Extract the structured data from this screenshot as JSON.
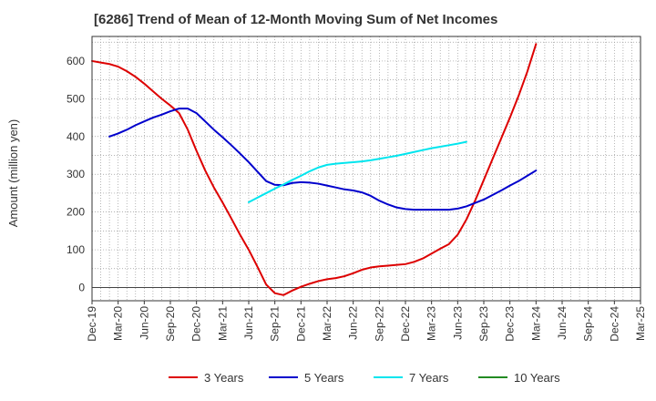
{
  "chart_data": {
    "type": "line",
    "title": "[6286]  Trend of Mean of 12-Month Moving Sum of Net Incomes",
    "ylabel": "Amount (million yen)",
    "xlabel": "",
    "x_tick_labels": [
      "Dec-19",
      "Mar-20",
      "Jun-20",
      "Sep-20",
      "Dec-20",
      "Mar-21",
      "Jun-21",
      "Sep-21",
      "Dec-21",
      "Mar-22",
      "Jun-22",
      "Sep-22",
      "Dec-22",
      "Mar-23",
      "Jun-23",
      "Sep-23",
      "Dec-23",
      "Mar-24",
      "Jun-24",
      "Sep-24",
      "Dec-24",
      "Mar-25"
    ],
    "y_ticks": [
      0,
      100,
      200,
      300,
      400,
      500,
      600
    ],
    "ylim": [
      -35,
      665
    ],
    "grid": true,
    "legend_position": "bottom",
    "series": [
      {
        "name": "3 Years",
        "color": "#dd0000",
        "points": [
          [
            0,
            600
          ],
          [
            1,
            596
          ],
          [
            2,
            592
          ],
          [
            3,
            585
          ],
          [
            4,
            573
          ],
          [
            5,
            558
          ],
          [
            6,
            540
          ],
          [
            7,
            520
          ],
          [
            8,
            500
          ],
          [
            9,
            482
          ],
          [
            10,
            462
          ],
          [
            11,
            418
          ],
          [
            12,
            362
          ],
          [
            13,
            310
          ],
          [
            14,
            265
          ],
          [
            15,
            225
          ],
          [
            16,
            183
          ],
          [
            17,
            140
          ],
          [
            18,
            100
          ],
          [
            19,
            55
          ],
          [
            20,
            8
          ],
          [
            21,
            -15
          ],
          [
            22,
            -20
          ],
          [
            23,
            -8
          ],
          [
            24,
            2
          ],
          [
            25,
            10
          ],
          [
            26,
            17
          ],
          [
            27,
            22
          ],
          [
            28,
            25
          ],
          [
            29,
            30
          ],
          [
            30,
            38
          ],
          [
            31,
            47
          ],
          [
            32,
            53
          ],
          [
            33,
            56
          ],
          [
            34,
            58
          ],
          [
            35,
            60
          ],
          [
            36,
            62
          ],
          [
            37,
            68
          ],
          [
            38,
            77
          ],
          [
            39,
            90
          ],
          [
            40,
            103
          ],
          [
            41,
            115
          ],
          [
            42,
            140
          ],
          [
            43,
            180
          ],
          [
            44,
            230
          ],
          [
            45,
            285
          ],
          [
            46,
            340
          ],
          [
            47,
            395
          ],
          [
            48,
            450
          ],
          [
            49,
            508
          ],
          [
            50,
            572
          ],
          [
            51,
            645
          ]
        ]
      },
      {
        "name": "5 Years",
        "color": "#0000cc",
        "points": [
          [
            2,
            400
          ],
          [
            3,
            408
          ],
          [
            4,
            418
          ],
          [
            5,
            430
          ],
          [
            6,
            440
          ],
          [
            7,
            450
          ],
          [
            8,
            458
          ],
          [
            9,
            467
          ],
          [
            10,
            474
          ],
          [
            11,
            474
          ],
          [
            12,
            462
          ],
          [
            13,
            440
          ],
          [
            14,
            418
          ],
          [
            15,
            398
          ],
          [
            16,
            377
          ],
          [
            17,
            355
          ],
          [
            18,
            332
          ],
          [
            19,
            307
          ],
          [
            20,
            282
          ],
          [
            21,
            272
          ],
          [
            22,
            271
          ],
          [
            23,
            277
          ],
          [
            24,
            279
          ],
          [
            25,
            278
          ],
          [
            26,
            275
          ],
          [
            27,
            270
          ],
          [
            28,
            265
          ],
          [
            29,
            260
          ],
          [
            30,
            257
          ],
          [
            31,
            252
          ],
          [
            32,
            243
          ],
          [
            33,
            230
          ],
          [
            34,
            220
          ],
          [
            35,
            212
          ],
          [
            36,
            208
          ],
          [
            37,
            206
          ],
          [
            38,
            206
          ],
          [
            39,
            206
          ],
          [
            40,
            206
          ],
          [
            41,
            206
          ],
          [
            42,
            209
          ],
          [
            43,
            215
          ],
          [
            44,
            224
          ],
          [
            45,
            233
          ],
          [
            46,
            245
          ],
          [
            47,
            257
          ],
          [
            48,
            270
          ],
          [
            49,
            282
          ],
          [
            50,
            296
          ],
          [
            51,
            310
          ]
        ]
      },
      {
        "name": "7 Years",
        "color": "#00e5ee",
        "points": [
          [
            18,
            226
          ],
          [
            19,
            238
          ],
          [
            20,
            250
          ],
          [
            21,
            262
          ],
          [
            22,
            273
          ],
          [
            23,
            285
          ],
          [
            24,
            296
          ],
          [
            25,
            308
          ],
          [
            26,
            318
          ],
          [
            27,
            325
          ],
          [
            28,
            328
          ],
          [
            29,
            330
          ],
          [
            30,
            332
          ],
          [
            31,
            334
          ],
          [
            32,
            337
          ],
          [
            33,
            341
          ],
          [
            34,
            345
          ],
          [
            35,
            349
          ],
          [
            36,
            354
          ],
          [
            37,
            359
          ],
          [
            38,
            364
          ],
          [
            39,
            369
          ],
          [
            40,
            373
          ],
          [
            41,
            377
          ],
          [
            42,
            381
          ],
          [
            43,
            386
          ]
        ]
      },
      {
        "name": "10 Years",
        "color": "#228b22",
        "points": []
      }
    ]
  }
}
